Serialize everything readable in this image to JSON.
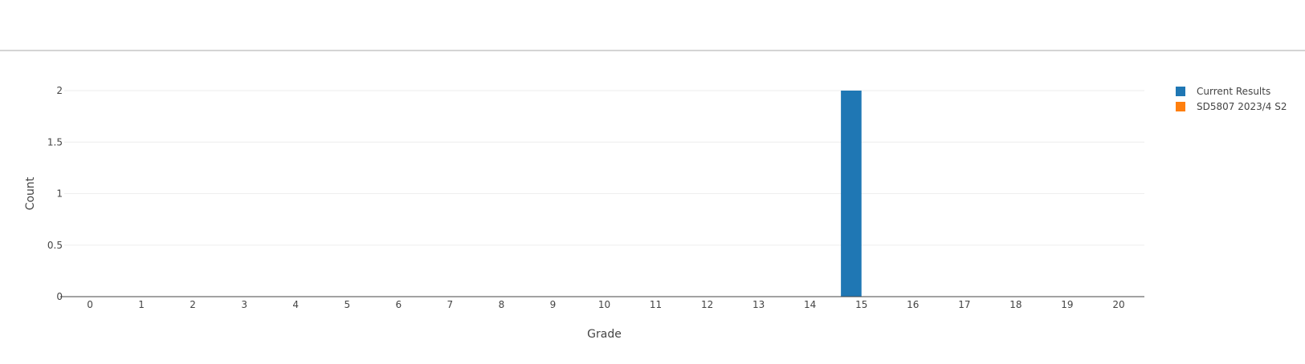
{
  "chart_data": {
    "type": "bar",
    "categories": [
      "0",
      "1",
      "2",
      "3",
      "4",
      "5",
      "6",
      "7",
      "8",
      "9",
      "10",
      "11",
      "12",
      "13",
      "14",
      "15",
      "16",
      "17",
      "18",
      "19",
      "20"
    ],
    "series": [
      {
        "name": "Current Results",
        "color": "#1f77b4",
        "values": [
          0,
          0,
          0,
          0,
          0,
          0,
          0,
          0,
          0,
          0,
          0,
          0,
          0,
          0,
          0,
          2,
          0,
          0,
          0,
          0,
          0
        ]
      },
      {
        "name": "SD5807 2023/4 S2",
        "color": "#ff7f0e",
        "values": [
          0,
          0,
          0,
          0,
          0,
          0,
          0,
          0,
          0,
          0,
          0,
          0,
          0,
          0,
          0,
          0,
          0,
          0,
          0,
          0,
          0
        ]
      }
    ],
    "xlabel": "Grade",
    "ylabel": "Count",
    "ylim": [
      0,
      2
    ],
    "yticks": [
      "0",
      "0.5",
      "1",
      "1.5",
      "2"
    ],
    "grid": true,
    "legend_position": "top-right"
  }
}
